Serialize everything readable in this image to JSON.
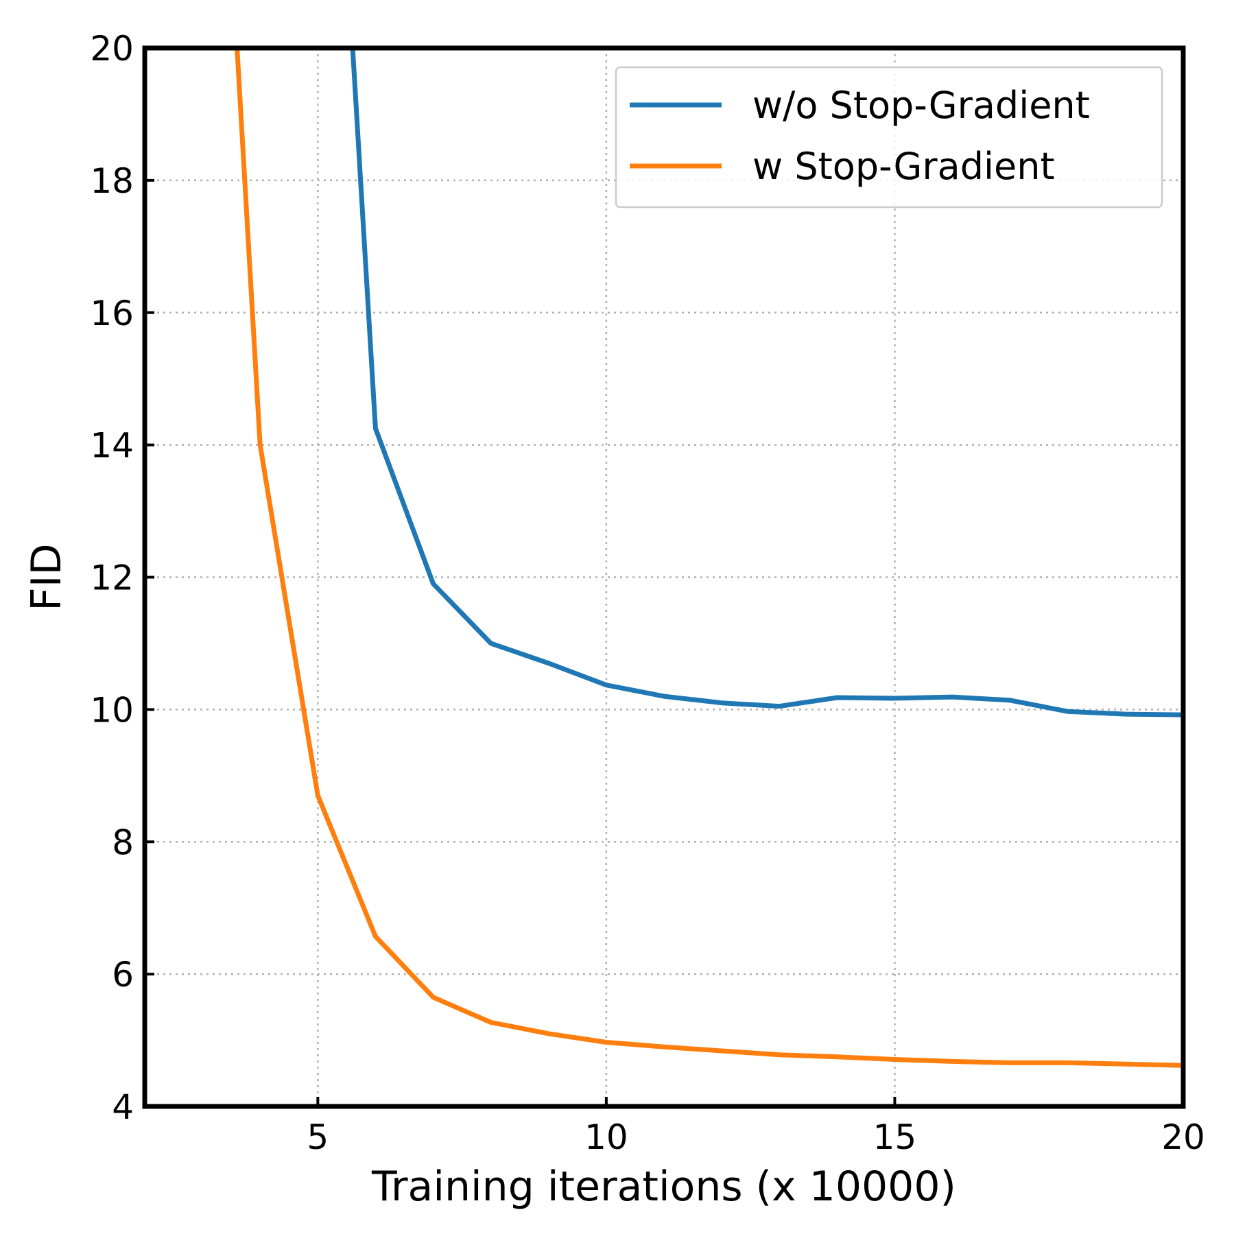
{
  "chart_data": {
    "type": "line",
    "title": "",
    "xlabel": "Training iterations (x 10000)",
    "ylabel": "FID",
    "xlim": [
      2,
      20
    ],
    "ylim": [
      4,
      20
    ],
    "x_ticks": [
      5,
      10,
      15,
      20
    ],
    "y_ticks": [
      4,
      6,
      8,
      10,
      12,
      14,
      16,
      18,
      20
    ],
    "x_tick_labels": [
      "5",
      "10",
      "15",
      "20"
    ],
    "y_tick_labels": [
      "4",
      "6",
      "8",
      "10",
      "12",
      "14",
      "16",
      "18",
      "20"
    ],
    "grid": true,
    "legend_position": "top-right",
    "series": [
      {
        "name": "w/o Stop-Gradient",
        "color": "#1f77b4",
        "x": [
          5.5,
          6,
          7,
          8,
          9,
          10,
          11,
          12,
          13,
          14,
          15,
          16,
          17,
          18,
          19,
          20
        ],
        "y": [
          21.5,
          14.25,
          11.9,
          11.0,
          10.7,
          10.37,
          10.2,
          10.1,
          10.05,
          10.18,
          10.17,
          10.19,
          10.14,
          9.97,
          9.93,
          9.92
        ]
      },
      {
        "name": "w Stop-Gradient",
        "color": "#ff7f0e",
        "x": [
          3.5,
          4,
          5,
          6,
          7,
          8,
          9,
          10,
          11,
          12,
          13,
          14,
          15,
          16,
          17,
          18,
          19,
          20
        ],
        "y": [
          21.5,
          14.0,
          8.7,
          6.57,
          5.65,
          5.27,
          5.1,
          4.97,
          4.9,
          4.84,
          4.78,
          4.75,
          4.71,
          4.68,
          4.66,
          4.66,
          4.64,
          4.62
        ]
      }
    ]
  }
}
